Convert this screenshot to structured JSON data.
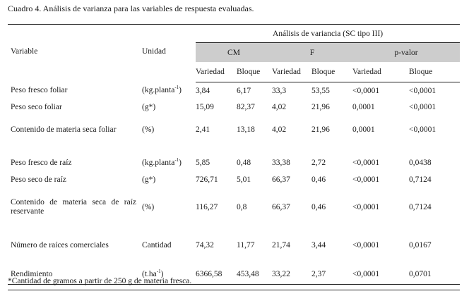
{
  "caption": "Cuadro 4. Análisis de varianza para las variables de respuesta evaluadas.",
  "headers": {
    "group": "Análisis de variancia (SC tipo III)",
    "variable": "Variable",
    "unidad": "Unidad",
    "cm": "CM",
    "f": "F",
    "pvalor": "p-valor",
    "variedad": "Variedad",
    "bloque": "Bloque"
  },
  "rows": [
    {
      "variable": "Peso fresco foliar",
      "unit_base": "(kg.planta",
      "unit_sup": "-1",
      "unit_end": ")",
      "cm_v": "3,84",
      "cm_b": "6,17",
      "f_v": "33,3",
      "f_b": "53,55",
      "p_v": "<0,0001",
      "p_b": "<0,0001"
    },
    {
      "variable": "Peso seco foliar",
      "unit_base": "(g*)",
      "unit_sup": "",
      "unit_end": "",
      "cm_v": "15,09",
      "cm_b": "82,37",
      "f_v": "4,02",
      "f_b": "21,96",
      "p_v": "0,0001",
      "p_b": "<0,0001"
    },
    {
      "variable": "Contenido de materia seca foliar",
      "unit_base": "(%)",
      "unit_sup": "",
      "unit_end": "",
      "cm_v": "2,41",
      "cm_b": "13,18",
      "f_v": "4,02",
      "f_b": "21,96",
      "p_v": "0,0001",
      "p_b": "<0,0001"
    },
    {
      "variable": "Peso fresco de raíz",
      "unit_base": "(kg.planta",
      "unit_sup": "-1",
      "unit_end": ")",
      "cm_v": "5,85",
      "cm_b": "0,48",
      "f_v": "33,38",
      "f_b": "2,72",
      "p_v": "<0,0001",
      "p_b": "0,0438"
    },
    {
      "variable": "Peso seco de raíz",
      "unit_base": "(g*)",
      "unit_sup": "",
      "unit_end": "",
      "cm_v": "726,71",
      "cm_b": "5,01",
      "f_v": "66,37",
      "f_b": "0,46",
      "p_v": "<0,0001",
      "p_b": "0,7124"
    },
    {
      "variable": "Contenido de materia seca de raíz reservante",
      "unit_base": "(%)",
      "unit_sup": "",
      "unit_end": "",
      "cm_v": "116,27",
      "cm_b": "0,8",
      "f_v": "66,37",
      "f_b": "0,46",
      "p_v": "<0,0001",
      "p_b": "0,7124"
    },
    {
      "variable": "Número de raíces comerciales",
      "unit_base": "Cantidad",
      "unit_sup": "",
      "unit_end": "",
      "cm_v": "74,32",
      "cm_b": "11,77",
      "f_v": "21,74",
      "f_b": "3,44",
      "p_v": "<0,0001",
      "p_b": "0,0167"
    },
    {
      "variable": "Rendimiento",
      "unit_base": "(t.ha",
      "unit_sup": "-1",
      "unit_end": ")",
      "cm_v": "6366,58",
      "cm_b": "453,48",
      "f_v": "33,22",
      "f_b": "2,37",
      "p_v": "<0,0001",
      "p_b": "0,0701"
    }
  ],
  "footnote": "*Cantidad de gramos a partir de 250 g de materia fresca."
}
